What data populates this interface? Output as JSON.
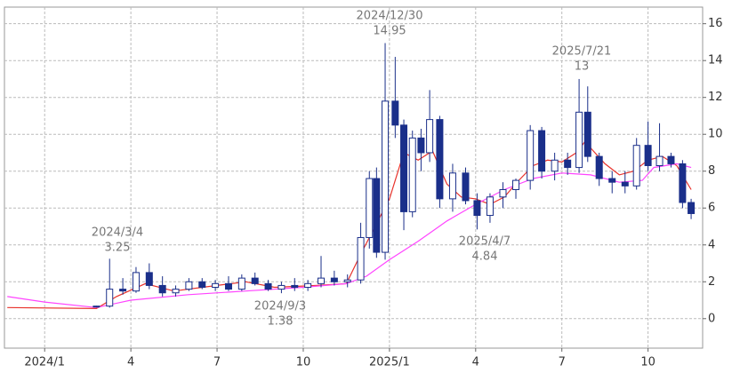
{
  "chart_data": {
    "type": "candlestick",
    "xlim": [
      -1.4,
      22.9
    ],
    "ylim": [
      -1.6,
      16.9
    ],
    "xticks": [
      {
        "value": 0,
        "label": "2024/1"
      },
      {
        "value": 3,
        "label": "4"
      },
      {
        "value": 6,
        "label": "7"
      },
      {
        "value": 9,
        "label": "10"
      },
      {
        "value": 12,
        "label": "2025/1"
      },
      {
        "value": 15,
        "label": "4"
      },
      {
        "value": 18,
        "label": "7"
      },
      {
        "value": 21,
        "label": "10"
      }
    ],
    "yticks": [
      0,
      2,
      4,
      6,
      8,
      10,
      12,
      14,
      16
    ],
    "grid": true,
    "up_color": "#ffffff",
    "down_color": "#1a2f8a",
    "x": [
      1.8,
      2.26,
      2.72,
      3.18,
      3.64,
      4.1,
      4.56,
      5.02,
      5.48,
      5.94,
      6.4,
      6.86,
      7.32,
      7.78,
      8.24,
      8.7,
      9.16,
      9.62,
      10.08,
      10.54,
      11.0,
      11.3,
      11.55,
      11.85,
      12.2,
      12.5,
      12.8,
      13.1,
      13.4,
      13.75,
      14.2,
      14.65,
      15.05,
      15.5,
      15.95,
      16.4,
      16.9,
      17.3,
      17.75,
      18.2,
      18.6,
      18.9,
      19.3,
      19.75,
      20.2,
      20.6,
      21.0,
      21.4,
      21.8,
      22.2,
      22.5
    ],
    "open": [
      0.65,
      0.68,
      1.6,
      1.5,
      2.5,
      1.8,
      1.4,
      1.6,
      2.0,
      1.7,
      1.9,
      1.6,
      2.2,
      1.9,
      1.6,
      1.8,
      1.7,
      1.9,
      2.2,
      2.0,
      2.1,
      4.4,
      7.6,
      3.6,
      11.8,
      10.5,
      5.8,
      9.8,
      9.0,
      10.8,
      6.5,
      7.9,
      6.4,
      5.6,
      6.6,
      7.0,
      7.5,
      10.2,
      8.0,
      8.6,
      8.2,
      11.2,
      8.8,
      7.6,
      7.4,
      7.2,
      9.4,
      8.3,
      8.8,
      8.4,
      6.3
    ],
    "high": [
      0.7,
      3.25,
      2.2,
      2.8,
      3.0,
      2.3,
      1.8,
      2.2,
      2.2,
      2.1,
      2.3,
      2.4,
      2.5,
      2.1,
      2.0,
      2.2,
      2.1,
      3.4,
      2.6,
      2.4,
      5.2,
      8.0,
      8.2,
      14.95,
      14.2,
      10.8,
      10.2,
      10.3,
      12.4,
      11.0,
      8.4,
      8.2,
      6.8,
      6.8,
      7.4,
      7.6,
      10.5,
      10.4,
      9.0,
      9.0,
      13,
      12.6,
      9.0,
      8.0,
      8.0,
      9.8,
      10.7,
      10.6,
      9.0,
      8.6,
      6.5
    ],
    "low": [
      0.6,
      0.6,
      1.3,
      1.4,
      1.6,
      1.2,
      1.2,
      1.5,
      1.6,
      1.5,
      1.5,
      1.5,
      1.8,
      1.5,
      1.38,
      1.5,
      1.5,
      1.7,
      1.8,
      1.7,
      1.9,
      3.8,
      3.3,
      3.2,
      9.8,
      4.8,
      5.5,
      8.0,
      8.5,
      6.0,
      5.8,
      6.2,
      4.84,
      5.2,
      6.0,
      6.5,
      7.0,
      7.6,
      7.5,
      7.8,
      7.9,
      8.5,
      7.2,
      6.8,
      6.8,
      7.0,
      8.0,
      8.0,
      8.2,
      6.0,
      5.4
    ],
    "close": [
      0.68,
      1.6,
      1.5,
      2.5,
      1.8,
      1.4,
      1.6,
      2.0,
      1.7,
      1.9,
      1.6,
      2.2,
      1.9,
      1.6,
      1.8,
      1.7,
      1.9,
      2.2,
      2.0,
      2.1,
      4.4,
      7.6,
      3.6,
      11.8,
      10.5,
      5.8,
      9.8,
      9.0,
      10.8,
      6.5,
      7.9,
      6.4,
      5.6,
      6.6,
      7.0,
      7.5,
      10.2,
      8.0,
      8.6,
      8.2,
      11.2,
      8.8,
      7.6,
      7.4,
      7.2,
      9.4,
      8.3,
      8.8,
      8.4,
      6.3,
      5.7
    ],
    "series": [
      {
        "color": "#e8322b",
        "x": [
          -1.3,
          1.8,
          2.5,
          3.5,
          4.5,
          6,
          7,
          8,
          9.5,
          10.5,
          11,
          11.5,
          12,
          12.5,
          13,
          13.5,
          14,
          14.5,
          15,
          15.5,
          16,
          16.5,
          17,
          17.5,
          18,
          18.5,
          18.8,
          19.5,
          20,
          20.5,
          21,
          21.5,
          22,
          22.5
        ],
        "values": [
          0.6,
          0.55,
          1.2,
          1.9,
          1.5,
          1.8,
          2.0,
          1.7,
          1.8,
          1.9,
          3.5,
          5.0,
          6.5,
          9.0,
          8.6,
          9.1,
          7.3,
          6.6,
          6.5,
          6.2,
          6.6,
          7.5,
          8.3,
          8.6,
          8.5,
          9.0,
          9.6,
          8.4,
          7.8,
          8.0,
          8.6,
          8.8,
          8.3,
          7.0
        ]
      },
      {
        "color": "#ff44ff",
        "x": [
          -1.3,
          0,
          1.8,
          3,
          5,
          7,
          9,
          10.5,
          11.2,
          12,
          13,
          14,
          15,
          16,
          17,
          18,
          19,
          20,
          20.8,
          21.2,
          22,
          22.5
        ],
        "values": [
          1.2,
          0.9,
          0.6,
          1.0,
          1.3,
          1.5,
          1.7,
          1.9,
          2.3,
          3.2,
          4.2,
          5.3,
          6.2,
          7.0,
          7.6,
          7.9,
          7.8,
          7.4,
          7.5,
          8.2,
          8.4,
          8.2
        ]
      }
    ],
    "annotations": [
      {
        "label": "2024/3/4",
        "value": 3.25
      },
      {
        "label": "2024/9/3",
        "value": 1.38
      },
      {
        "label": "2024/12/30",
        "value": 14.95
      },
      {
        "label": "2025/4/7",
        "value": 4.84
      },
      {
        "label": "2025/7/21",
        "value": 13
      }
    ]
  }
}
